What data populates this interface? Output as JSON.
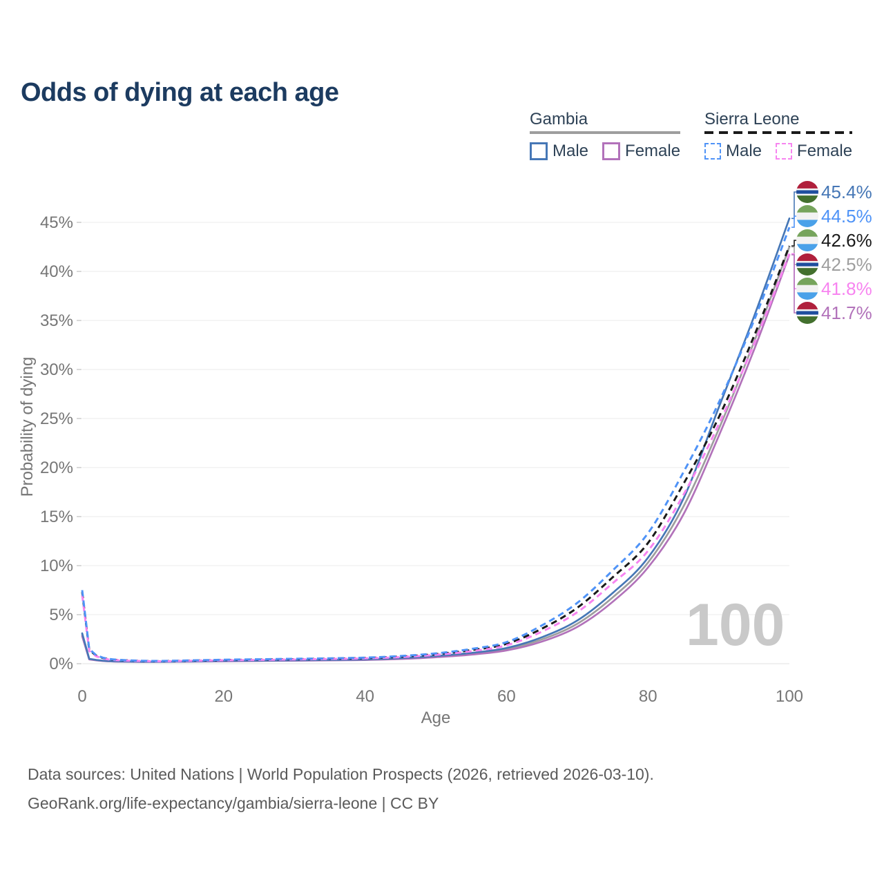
{
  "title": "Odds of dying at each age",
  "watermark": "100",
  "legend": {
    "groups": [
      {
        "label": "Gambia",
        "line_style": "solid",
        "underline_color": "#9e9e9e",
        "items": [
          {
            "label": "Male",
            "color": "#4677b6"
          },
          {
            "label": "Female",
            "color": "#b272ba"
          }
        ]
      },
      {
        "label": "Sierra Leone",
        "line_style": "dashed",
        "underline_color": "#1a1a1a",
        "items": [
          {
            "label": "Male",
            "color": "#4f93f7"
          },
          {
            "label": "Female",
            "color": "#f784f0"
          }
        ]
      }
    ]
  },
  "footer": {
    "line1": "Data sources: United Nations | World Population Prospects (2026, retrieved 2026-03-10).",
    "line2": "GeoRank.org/life-expectancy/gambia/sierra-leone | CC BY"
  },
  "flags": {
    "gambia": {
      "name": "gambia",
      "bands": [
        {
          "color": "#b0203c",
          "frac": 0.34
        },
        {
          "color": "#f4f4f4",
          "frac": 0.08
        },
        {
          "color": "#1f4e9e",
          "frac": 0.16
        },
        {
          "color": "#f4f4f4",
          "frac": 0.08
        },
        {
          "color": "#43702e",
          "frac": 0.34
        }
      ]
    },
    "sierra_leone": {
      "name": "sierra-leone",
      "bands": [
        {
          "color": "#76a45c",
          "frac": 0.3333
        },
        {
          "color": "#f2f2f2",
          "frac": 0.3334
        },
        {
          "color": "#4aa1e9",
          "frac": 0.3333
        }
      ]
    }
  },
  "chart_data": {
    "type": "line",
    "title": "Odds of dying at each age",
    "xlabel": "Age",
    "ylabel": "Probability of dying",
    "xlim": [
      0,
      100
    ],
    "ylim": [
      0,
      47
    ],
    "grid": "horizontal",
    "legend_position": "top-right",
    "units": "%",
    "x_ticks": [
      {
        "value": 0,
        "label": "0"
      },
      {
        "value": 20,
        "label": "20"
      },
      {
        "value": 40,
        "label": "40"
      },
      {
        "value": 60,
        "label": "60"
      },
      {
        "value": 80,
        "label": "80"
      },
      {
        "value": 100,
        "label": "100"
      }
    ],
    "y_ticks": [
      {
        "value": 0,
        "label": "0%"
      },
      {
        "value": 5,
        "label": "5%"
      },
      {
        "value": 10,
        "label": "10%"
      },
      {
        "value": 15,
        "label": "15%"
      },
      {
        "value": 20,
        "label": "20%"
      },
      {
        "value": 25,
        "label": "25%"
      },
      {
        "value": 30,
        "label": "30%"
      },
      {
        "value": 35,
        "label": "35%"
      },
      {
        "value": 40,
        "label": "40%"
      },
      {
        "value": 45,
        "label": "45%"
      }
    ],
    "x": [
      0,
      1,
      2,
      3,
      5,
      10,
      15,
      20,
      25,
      30,
      35,
      40,
      45,
      50,
      55,
      60,
      65,
      70,
      75,
      80,
      85,
      90,
      95,
      100
    ],
    "series": [
      {
        "id": "gambia-total",
        "name": "Gambia (both sexes)",
        "country": "Gambia",
        "color": "#9e9e9e",
        "label_color": "#9e9e9e",
        "dashed": false,
        "flag": "gambia",
        "end_label": "42.5%",
        "values": [
          2.95,
          0.47,
          0.36,
          0.28,
          0.22,
          0.19,
          0.22,
          0.27,
          0.3,
          0.33,
          0.36,
          0.41,
          0.52,
          0.72,
          1.0,
          1.48,
          2.47,
          4.07,
          6.75,
          10.3,
          16.0,
          23.9,
          32.8,
          42.5
        ]
      },
      {
        "id": "gambia-female",
        "name": "Gambia Female",
        "country": "Gambia",
        "color": "#b272ba",
        "label_color": "#b272ba",
        "dashed": false,
        "flag": "gambia",
        "end_label": "41.7%",
        "values": [
          2.8,
          0.44,
          0.34,
          0.27,
          0.21,
          0.18,
          0.21,
          0.25,
          0.28,
          0.31,
          0.34,
          0.38,
          0.48,
          0.66,
          0.92,
          1.35,
          2.25,
          3.75,
          6.3,
          9.8,
          15.2,
          23.2,
          32.0,
          41.7
        ]
      },
      {
        "id": "gambia-male",
        "name": "Gambia Male",
        "country": "Gambia",
        "color": "#4677b6",
        "label_color": "#4677b6",
        "dashed": false,
        "flag": "gambia",
        "end_label": "45.4%",
        "values": [
          3.1,
          0.5,
          0.38,
          0.3,
          0.24,
          0.2,
          0.24,
          0.29,
          0.32,
          0.35,
          0.39,
          0.44,
          0.56,
          0.78,
          1.1,
          1.6,
          2.7,
          4.4,
          7.2,
          10.8,
          16.8,
          26.1,
          35.4,
          45.4
        ]
      },
      {
        "id": "sierra-leone-total",
        "name": "Sierra Leone (both sexes)",
        "country": "Sierra Leone",
        "color": "#1a1a1a",
        "label_color": "#1a1a1a",
        "dashed": true,
        "flag": "sierra_leone",
        "end_label": "42.6%",
        "values": [
          7.3,
          1.4,
          0.8,
          0.56,
          0.38,
          0.26,
          0.31,
          0.37,
          0.42,
          0.46,
          0.51,
          0.58,
          0.72,
          0.97,
          1.38,
          2.02,
          3.57,
          5.7,
          8.8,
          12.3,
          18.3,
          25.1,
          33.4,
          42.6
        ]
      },
      {
        "id": "sierra-leone-female",
        "name": "Sierra Leone Female",
        "country": "Sierra Leone",
        "color": "#f784f0",
        "label_color": "#f784f0",
        "dashed": true,
        "flag": "sierra_leone",
        "end_label": "41.8%",
        "values": [
          7.0,
          1.3,
          0.75,
          0.52,
          0.35,
          0.25,
          0.29,
          0.35,
          0.39,
          0.43,
          0.48,
          0.54,
          0.67,
          0.9,
          1.27,
          1.87,
          3.27,
          5.25,
          8.2,
          11.5,
          17.2,
          24.4,
          32.6,
          41.8
        ]
      },
      {
        "id": "sierra-leone-male",
        "name": "Sierra Leone Male",
        "country": "Sierra Leone",
        "color": "#4f93f7",
        "label_color": "#4f93f7",
        "dashed": true,
        "flag": "sierra_leone",
        "end_label": "44.5%",
        "values": [
          7.5,
          1.5,
          0.85,
          0.6,
          0.4,
          0.28,
          0.33,
          0.4,
          0.45,
          0.5,
          0.55,
          0.62,
          0.78,
          1.05,
          1.5,
          2.2,
          3.9,
          6.2,
          9.5,
          13.3,
          19.5,
          26.6,
          35.0,
          44.5
        ]
      }
    ]
  }
}
